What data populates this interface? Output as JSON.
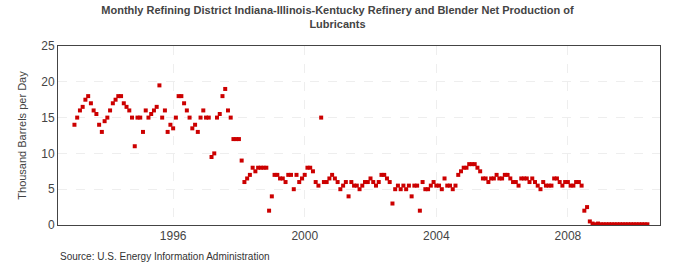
{
  "chart_data": {
    "type": "scatter",
    "title": "Monthly Refining District Indiana-Illinois-Kentucky Refinery and Blender Net Production of\nLubricants",
    "y_label": "Thousand Barrels per Day",
    "annotations": [
      "Source: U.S. Energy Information Administration"
    ],
    "color": "#cc0000",
    "marker": "square",
    "grid": true,
    "x": [
      1993.0,
      1993.083,
      1993.167,
      1993.25,
      1993.333,
      1993.417,
      1993.5,
      1993.583,
      1993.667,
      1993.75,
      1993.833,
      1993.917,
      1994.0,
      1994.083,
      1994.167,
      1994.25,
      1994.333,
      1994.417,
      1994.5,
      1994.583,
      1994.667,
      1994.75,
      1994.833,
      1994.917,
      1995.0,
      1995.083,
      1995.167,
      1995.25,
      1995.333,
      1995.417,
      1995.5,
      1995.583,
      1995.667,
      1995.75,
      1995.833,
      1995.917,
      1996.0,
      1996.083,
      1996.167,
      1996.25,
      1996.333,
      1996.417,
      1996.5,
      1996.583,
      1996.667,
      1996.75,
      1996.833,
      1996.917,
      1997.0,
      1997.083,
      1997.167,
      1997.25,
      1997.333,
      1997.417,
      1997.5,
      1997.583,
      1997.667,
      1997.75,
      1997.833,
      1997.917,
      1998.0,
      1998.083,
      1998.167,
      1998.25,
      1998.333,
      1998.417,
      1998.5,
      1998.583,
      1998.667,
      1998.75,
      1998.833,
      1998.917,
      1999.0,
      1999.083,
      1999.167,
      1999.25,
      1999.333,
      1999.417,
      1999.5,
      1999.583,
      1999.667,
      1999.75,
      1999.833,
      1999.917,
      2000.0,
      2000.083,
      2000.167,
      2000.25,
      2000.333,
      2000.417,
      2000.5,
      2000.583,
      2000.667,
      2000.75,
      2000.833,
      2000.917,
      2001.0,
      2001.083,
      2001.167,
      2001.25,
      2001.333,
      2001.417,
      2001.5,
      2001.583,
      2001.667,
      2001.75,
      2001.833,
      2001.917,
      2002.0,
      2002.083,
      2002.167,
      2002.25,
      2002.333,
      2002.417,
      2002.5,
      2002.583,
      2002.667,
      2002.75,
      2002.833,
      2002.917,
      2003.0,
      2003.083,
      2003.167,
      2003.25,
      2003.333,
      2003.417,
      2003.5,
      2003.583,
      2003.667,
      2003.75,
      2003.833,
      2003.917,
      2004.0,
      2004.083,
      2004.167,
      2004.25,
      2004.333,
      2004.417,
      2004.5,
      2004.583,
      2004.667,
      2004.75,
      2004.833,
      2004.917,
      2005.0,
      2005.083,
      2005.167,
      2005.25,
      2005.333,
      2005.417,
      2005.5,
      2005.583,
      2005.667,
      2005.75,
      2005.833,
      2005.917,
      2006.0,
      2006.083,
      2006.167,
      2006.25,
      2006.333,
      2006.417,
      2006.5,
      2006.583,
      2006.667,
      2006.75,
      2006.833,
      2006.917,
      2007.0,
      2007.083,
      2007.167,
      2007.25,
      2007.333,
      2007.417,
      2007.5,
      2007.583,
      2007.667,
      2007.75,
      2007.833,
      2007.917,
      2008.0,
      2008.083,
      2008.167,
      2008.25,
      2008.333,
      2008.417,
      2008.5,
      2008.583,
      2008.667,
      2008.75,
      2008.833,
      2008.917,
      2009.0,
      2009.083,
      2009.167,
      2009.25,
      2009.333,
      2009.417,
      2009.5,
      2009.583,
      2009.667,
      2009.75,
      2009.833,
      2009.917,
      2010.0,
      2010.083,
      2010.167,
      2010.25,
      2010.333,
      2010.417
    ],
    "values": [
      14.0,
      15.0,
      16.0,
      16.5,
      17.5,
      18.0,
      17.0,
      16.0,
      15.5,
      14.0,
      13.0,
      14.5,
      15.0,
      16.0,
      17.0,
      17.5,
      18.0,
      18.0,
      17.0,
      16.5,
      16.0,
      15.0,
      11.0,
      15.0,
      15.0,
      13.0,
      16.0,
      15.0,
      15.5,
      16.0,
      16.5,
      19.5,
      15.0,
      16.0,
      13.0,
      14.0,
      13.5,
      15.0,
      18.0,
      18.0,
      17.0,
      16.0,
      15.0,
      13.5,
      14.0,
      13.0,
      15.0,
      16.0,
      15.0,
      15.0,
      9.5,
      10.0,
      15.0,
      15.5,
      18.0,
      19.0,
      16.0,
      15.0,
      12.0,
      12.0,
      12.0,
      9.0,
      6.0,
      6.5,
      7.0,
      8.0,
      7.5,
      8.0,
      8.0,
      8.0,
      8.0,
      2.0,
      4.0,
      7.0,
      7.0,
      6.5,
      6.5,
      6.0,
      7.0,
      7.0,
      5.0,
      7.0,
      6.0,
      6.5,
      7.0,
      8.0,
      8.0,
      7.5,
      6.0,
      5.5,
      15.0,
      6.0,
      6.0,
      6.5,
      7.0,
      6.5,
      6.0,
      5.0,
      5.5,
      6.0,
      4.0,
      6.0,
      5.5,
      5.5,
      5.0,
      5.5,
      6.0,
      6.0,
      6.5,
      6.0,
      5.5,
      6.0,
      7.0,
      7.0,
      6.5,
      6.0,
      3.0,
      5.0,
      5.5,
      5.0,
      5.5,
      5.0,
      5.5,
      4.0,
      5.5,
      5.5,
      2.0,
      6.0,
      5.0,
      5.0,
      5.5,
      6.0,
      5.5,
      5.5,
      5.0,
      6.5,
      5.5,
      5.5,
      5.0,
      5.5,
      7.0,
      7.5,
      8.0,
      8.0,
      8.5,
      8.5,
      8.5,
      8.0,
      7.5,
      6.5,
      6.5,
      6.0,
      6.5,
      6.5,
      7.0,
      6.5,
      6.5,
      7.0,
      7.0,
      6.5,
      6.0,
      6.0,
      5.5,
      6.5,
      6.5,
      6.5,
      6.0,
      6.5,
      6.0,
      5.5,
      5.0,
      6.0,
      5.5,
      5.5,
      5.5,
      6.5,
      6.5,
      6.0,
      5.5,
      6.0,
      6.0,
      5.5,
      5.5,
      6.0,
      6.0,
      5.5,
      2.0,
      2.5,
      0.5,
      0.2,
      0.1,
      0.2,
      0.1,
      0.1,
      0.1,
      0.1,
      0.1,
      0.1,
      0.1,
      0.1,
      0.1,
      0.1,
      0.1,
      0.1,
      0.1,
      0.1,
      0.1,
      0.1,
      0.1,
      0.1
    ],
    "xlim": [
      1992.5,
      2010.8
    ],
    "xticks": [
      1996,
      2000,
      2004,
      2008
    ],
    "ylim": [
      0,
      25
    ],
    "yticks": [
      0,
      5,
      10,
      15,
      20,
      25
    ]
  }
}
